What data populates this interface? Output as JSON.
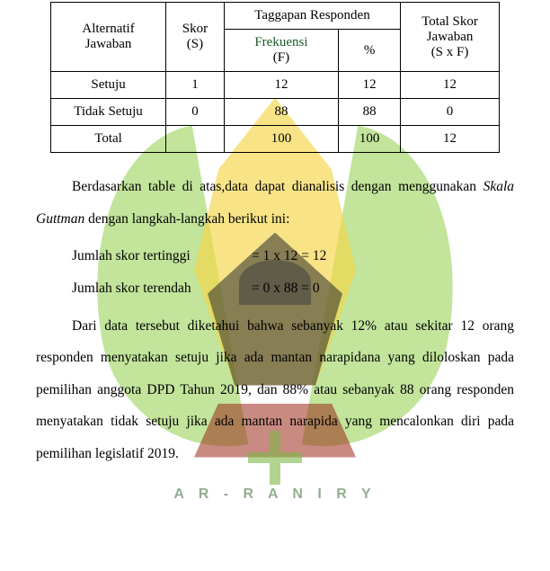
{
  "watermark": {
    "text": "A R - R A N I R Y",
    "leaf_color": "#a8d870",
    "yellow_color": "#f5d547",
    "dark_color": "#2a2a2a",
    "red_color": "#9a2a1a",
    "green_cross_color": "#7eb847",
    "text_color": "#4a7a48"
  },
  "table": {
    "headers": {
      "alt": "Alternatif",
      "jawaban": "Jawaban",
      "skor": "Skor",
      "s": "(S)",
      "tanggapan": "Taggapan Responden",
      "frekuensi": "Frekuensi",
      "f": "(F)",
      "persen": "%",
      "total_skor": "Total Skor",
      "jawaban2": "Jawaban",
      "sxf": "(S x F)"
    },
    "rows": [
      {
        "alt": "Setuju",
        "skor": "1",
        "freq": "12",
        "persen": "12",
        "total": "12"
      },
      {
        "alt": "Tidak Setuju",
        "skor": "0",
        "freq": "88",
        "persen": "88",
        "total": "0"
      },
      {
        "alt": "Total",
        "skor": "",
        "freq": "100",
        "persen": "100",
        "total": "12"
      }
    ]
  },
  "paragraphs": {
    "p1_a": "Berdasarkan table di atas,data dapat dianalisis dengan menggunakan ",
    "p1_italic": "Skala Guttman",
    "p1_b": " dengan langkah-langkah berikut ini:",
    "calc1_label": "Jumlah skor tertinggi",
    "calc1_val": "= 1 x 12 = 12",
    "calc2_label": "Jumlah skor terendah",
    "calc2_val": "= 0 x 88 = 0",
    "p2": "Dari data tersebut diketahui bahwa sebanyak 12% atau sekitar 12 orang responden menyatakan setuju jika ada mantan narapidana yang diloloskan pada pemilihan anggota DPD Tahun 2019, dan 88% atau sebanyak 88 orang responden menyatakan tidak setuju jika ada mantan narapida yang mencalonkan diri pada pemilihan legislatif 2019."
  }
}
